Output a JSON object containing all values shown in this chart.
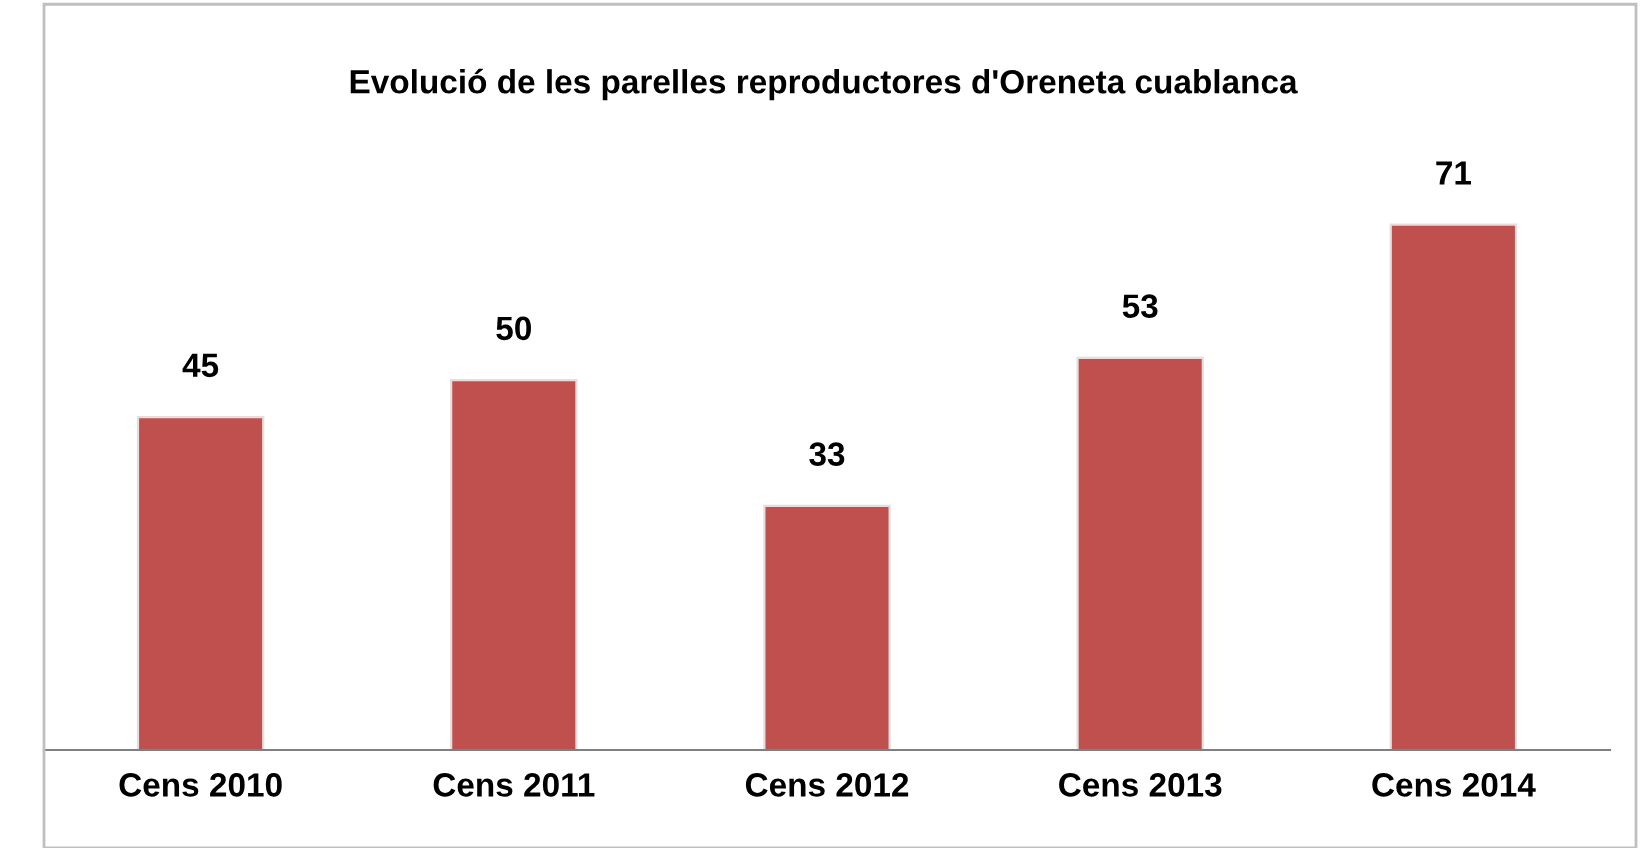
{
  "chart_data": {
    "type": "bar",
    "title": "Evolució de les parelles reproductores d'Oreneta cuablanca",
    "categories": [
      "Cens 2010",
      "Cens 2011",
      "Cens 2012",
      "Cens 2013",
      "Cens 2014"
    ],
    "values": [
      45,
      50,
      33,
      53,
      71
    ],
    "color": "#c0504d",
    "data_labels": true,
    "grid": false,
    "legend": false
  }
}
